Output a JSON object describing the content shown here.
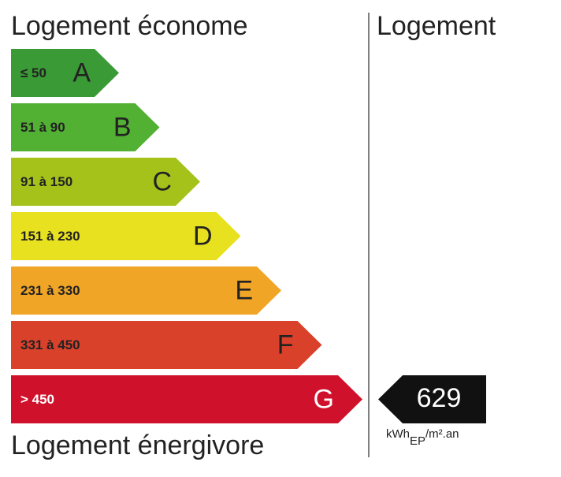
{
  "header": {
    "left": "Logement économe",
    "right": "Logement"
  },
  "classes": [
    {
      "range": "≤ 50",
      "letter": "A",
      "color": "#3a9a35"
    },
    {
      "range": "51 à 90",
      "letter": "B",
      "color": "#52b033"
    },
    {
      "range": "91 à 150",
      "letter": "C",
      "color": "#a5c21b"
    },
    {
      "range": "151 à 230",
      "letter": "D",
      "color": "#e8e11f"
    },
    {
      "range": "231 à 330",
      "letter": "E",
      "color": "#f0a526"
    },
    {
      "range": "331 à 450",
      "letter": "F",
      "color": "#d9412a"
    },
    {
      "range": "> 450",
      "letter": "G",
      "color": "#d0112b"
    }
  ],
  "footer": "Logement énergivore",
  "result": {
    "value": 629,
    "unit": "kWh",
    "unit_sub": "EP",
    "unit_rest": "/m².an"
  }
}
